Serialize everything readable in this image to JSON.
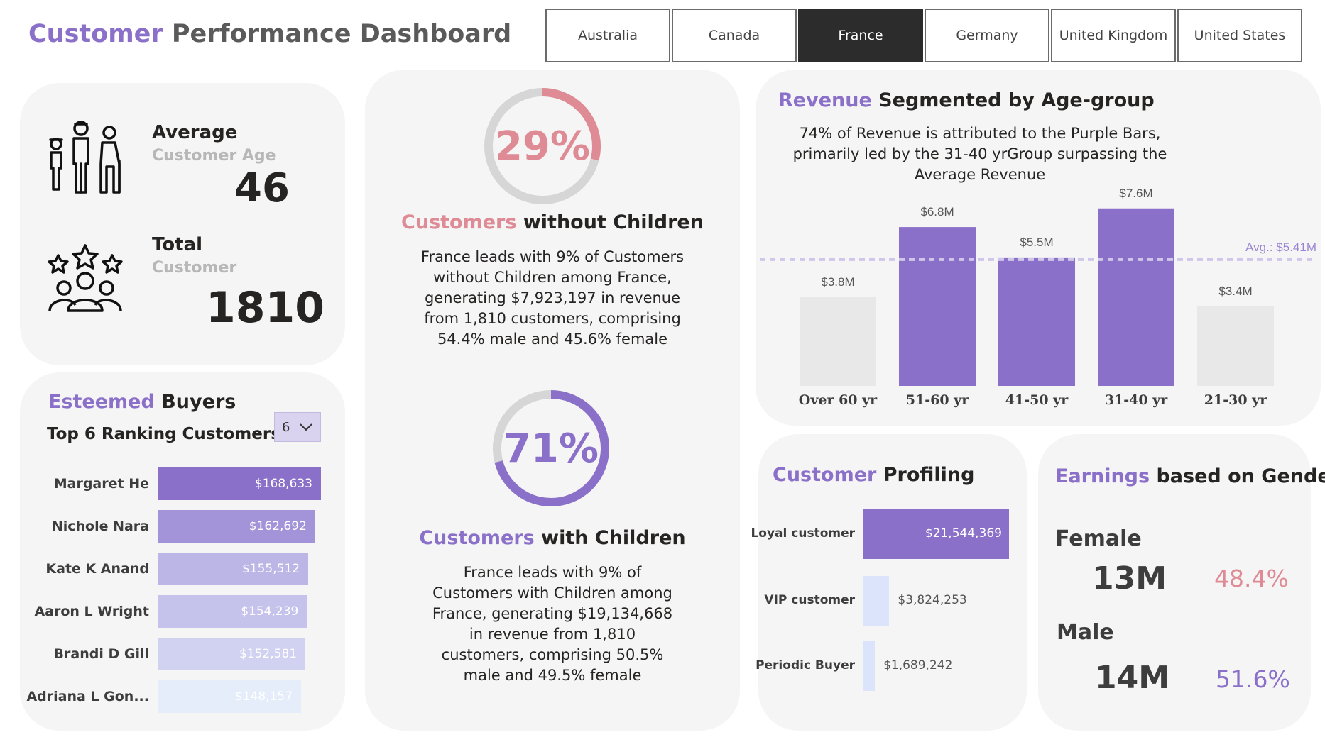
{
  "header": {
    "title_accent": "Customer",
    "title_rest": " Performance Dashboard"
  },
  "tabs": [
    {
      "label": "Australia",
      "active": false
    },
    {
      "label": "Canada",
      "active": false
    },
    {
      "label": "France",
      "active": true
    },
    {
      "label": "Germany",
      "active": false
    },
    {
      "label": "United Kingdom",
      "active": false
    },
    {
      "label": "United States",
      "active": false
    }
  ],
  "kpis": {
    "age_heading": "Average",
    "age_sub": "Customer Age",
    "age_value": "46",
    "total_heading": "Total",
    "total_sub": "Customer",
    "total_value": "1810"
  },
  "buyers": {
    "title_accent": "Esteemed",
    "title_rest": " Buyers",
    "subtitle": "Top 6 Ranking Customers",
    "dropdown_value": "6",
    "rows": [
      {
        "name": "Margaret He",
        "label": "$168,633",
        "value": 168633,
        "color": "#8b70c9"
      },
      {
        "name": "Nichole Nara",
        "label": "$162,692",
        "value": 162692,
        "color": "#a393d8"
      },
      {
        "name": "Kate K Anand",
        "label": "$155,512",
        "value": 155512,
        "color": "#bcb6e6"
      },
      {
        "name": "Aaron L Wright",
        "label": "$154,239",
        "value": 154239,
        "color": "#c5c3ec"
      },
      {
        "name": "Brandi D Gill",
        "label": "$152,581",
        "value": 152581,
        "color": "#d1d1f1"
      },
      {
        "name": "Adriana L Gon...",
        "label": "$148,157",
        "value": 148157,
        "color": "#e5edfb"
      }
    ]
  },
  "children": {
    "without": {
      "percent": "29%",
      "fraction": 0.29,
      "title_accent": "Customers",
      "title_rest": " without Children",
      "description": "France leads with 9% of Customers without Children among France, generating $7,923,197 in revenue from 1,810 customers, comprising 54.4% male and 45.6% female",
      "color": "#df8b95"
    },
    "with": {
      "percent": "71%",
      "fraction": 0.71,
      "title_accent": "Customers",
      "title_rest": " with Children",
      "description": "France leads with 9% of Customers with Children among France, generating $19,134,668 in revenue from 1,810 customers, comprising 50.5% male and 49.5% female",
      "color": "#8b70c9"
    }
  },
  "revenue": {
    "title_accent": "Revenue",
    "title_rest": " Segmented by Age-group",
    "description": "74% of Revenue is attributed to the Purple Bars, primarily led by the 31-40 yrGroup surpassing the Average Revenue",
    "avg_label": "Avg.: $5.41M",
    "chart_data": {
      "type": "bar",
      "categories": [
        "Over 60 yr",
        "51-60 yr",
        "41-50 yr",
        "31-40 yr",
        "21-30 yr"
      ],
      "values": [
        3.8,
        6.8,
        5.5,
        7.6,
        3.4
      ],
      "labels": [
        "$3.8M",
        "$6.8M",
        "$5.5M",
        "$7.6M",
        "$3.4M"
      ],
      "highlight": [
        false,
        true,
        true,
        true,
        false
      ],
      "average": 5.41,
      "ylim": [
        0,
        8.2
      ],
      "colors": {
        "highlight": "#8b70c9",
        "base": "#e8e8e8",
        "average": "#cfc6ea"
      }
    }
  },
  "profiling": {
    "title_accent": "Customer",
    "title_rest": " Profiling",
    "rows": [
      {
        "name": "Loyal customer",
        "label": "$21,544,369",
        "value": 21544369,
        "color": "#8b70c9"
      },
      {
        "name": "VIP customer",
        "label": "$3,824,253",
        "value": 3824253,
        "color": "#dbe4fa"
      },
      {
        "name": "Periodic Buyer",
        "label": "$1,689,242",
        "value": 1689242,
        "color": "#dbe4fa"
      }
    ]
  },
  "gender": {
    "title_accent": "Earnings",
    "title_rest": " based on Gender",
    "female_label": "Female",
    "female_value": "13M",
    "female_pct": "48.4%",
    "male_label": "Male",
    "male_value": "14M",
    "male_pct": "51.6%"
  }
}
